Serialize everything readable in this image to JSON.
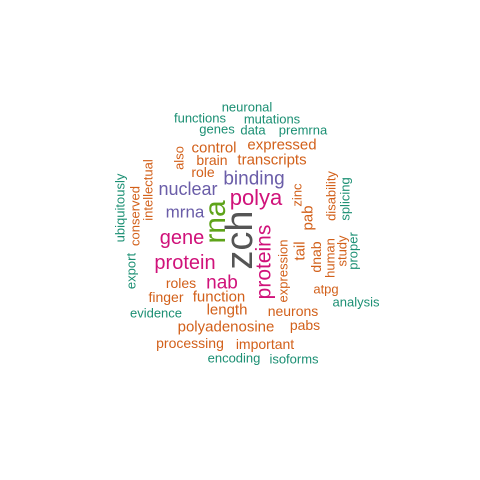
{
  "palette": {
    "dark": "#555555",
    "magenta": "#d0127a",
    "green": "#5ea319",
    "purple": "#6a5da8",
    "orange": "#d2601a",
    "teal": "#1b8f73"
  },
  "words": [
    {
      "text": "zch",
      "color": "dark"
    },
    {
      "text": "rna",
      "color": "green"
    },
    {
      "text": "polya",
      "color": "magenta"
    },
    {
      "text": "proteins",
      "color": "magenta"
    },
    {
      "text": "gene",
      "color": "magenta"
    },
    {
      "text": "protein",
      "color": "magenta"
    },
    {
      "text": "nab",
      "color": "magenta"
    },
    {
      "text": "binding",
      "color": "purple"
    },
    {
      "text": "nuclear",
      "color": "purple"
    },
    {
      "text": "mrna",
      "color": "purple"
    },
    {
      "text": "neuronal",
      "color": "teal"
    },
    {
      "text": "functions",
      "color": "teal"
    },
    {
      "text": "mutations",
      "color": "teal"
    },
    {
      "text": "genes",
      "color": "teal"
    },
    {
      "text": "data",
      "color": "teal"
    },
    {
      "text": "premrna",
      "color": "teal"
    },
    {
      "text": "expressed",
      "color": "orange"
    },
    {
      "text": "control",
      "color": "orange"
    },
    {
      "text": "also",
      "color": "orange"
    },
    {
      "text": "brain",
      "color": "orange"
    },
    {
      "text": "transcripts",
      "color": "orange"
    },
    {
      "text": "role",
      "color": "orange"
    },
    {
      "text": "ubiquitously",
      "color": "teal"
    },
    {
      "text": "conserved",
      "color": "orange"
    },
    {
      "text": "intellectual",
      "color": "orange"
    },
    {
      "text": "export",
      "color": "teal"
    },
    {
      "text": "zinc",
      "color": "orange"
    },
    {
      "text": "pab",
      "color": "orange"
    },
    {
      "text": "disability",
      "color": "orange"
    },
    {
      "text": "splicing",
      "color": "teal"
    },
    {
      "text": "tail",
      "color": "orange"
    },
    {
      "text": "expression",
      "color": "orange"
    },
    {
      "text": "dnab",
      "color": "orange"
    },
    {
      "text": "human",
      "color": "orange"
    },
    {
      "text": "study",
      "color": "orange"
    },
    {
      "text": "proper",
      "color": "teal"
    },
    {
      "text": "atpg",
      "color": "orange"
    },
    {
      "text": "analysis",
      "color": "teal"
    },
    {
      "text": "roles",
      "color": "orange"
    },
    {
      "text": "finger",
      "color": "orange"
    },
    {
      "text": "function",
      "color": "orange"
    },
    {
      "text": "length",
      "color": "orange"
    },
    {
      "text": "neurons",
      "color": "orange"
    },
    {
      "text": "evidence",
      "color": "teal"
    },
    {
      "text": "polyadenosine",
      "color": "orange"
    },
    {
      "text": "pabs",
      "color": "orange"
    },
    {
      "text": "processing",
      "color": "orange"
    },
    {
      "text": "important",
      "color": "orange"
    },
    {
      "text": "encoding",
      "color": "teal"
    },
    {
      "text": "isoforms",
      "color": "teal"
    }
  ]
}
